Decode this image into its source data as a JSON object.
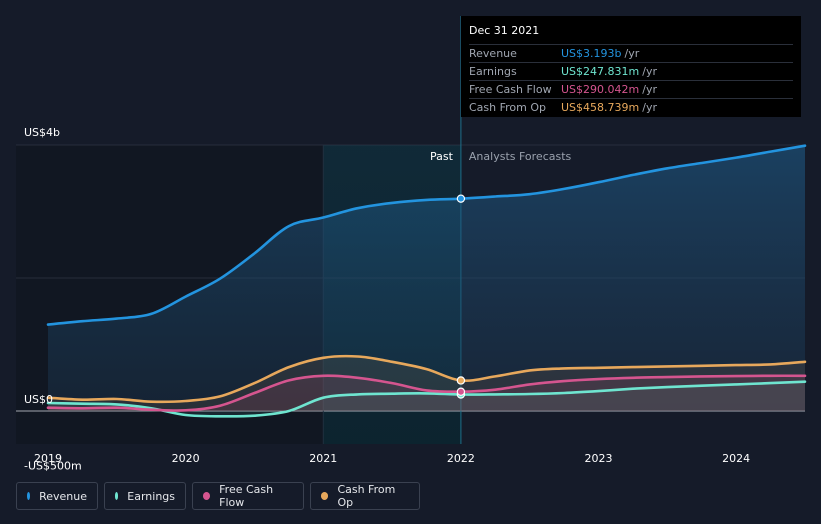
{
  "chart_data": {
    "type": "area",
    "y_unit_labels": [
      "US$4b",
      "US$0",
      "-US$500m"
    ],
    "y_ticks": [
      {
        "label": "US$4b",
        "value": 4000
      },
      {
        "label": "US$0",
        "value": 0
      },
      {
        "label": "-US$500m",
        "value": -500
      }
    ],
    "ylim": [
      -500,
      4000
    ],
    "xlim": [
      2019.0,
      2024.5
    ],
    "x_ticks": [
      {
        "label": "2019",
        "value": 2019.0
      },
      {
        "label": "2020",
        "value": 2020.0
      },
      {
        "label": "2021",
        "value": 2021.0
      },
      {
        "label": "2022",
        "value": 2022.0
      },
      {
        "label": "2023",
        "value": 2023.0
      },
      {
        "label": "2024",
        "value": 2024.0
      }
    ],
    "past_label": "Past",
    "forecast_label": "Analysts Forecasts",
    "past_region_start": 2021.0,
    "divider_x": 2022.0,
    "series": [
      {
        "name": "Revenue",
        "color": "#2394df",
        "x": [
          2019.0,
          2019.25,
          2019.5,
          2019.75,
          2020.0,
          2020.25,
          2020.5,
          2020.75,
          2021.0,
          2021.25,
          2021.5,
          2021.75,
          2022.0,
          2022.25,
          2022.5,
          2022.75,
          2023.0,
          2023.25,
          2023.5,
          2023.75,
          2024.0,
          2024.25,
          2024.5
        ],
        "values": [
          1300,
          1350,
          1390,
          1460,
          1720,
          1990,
          2370,
          2780,
          2910,
          3050,
          3130,
          3175,
          3193,
          3225,
          3260,
          3340,
          3440,
          3550,
          3650,
          3730,
          3810,
          3900,
          3990
        ]
      },
      {
        "name": "Earnings",
        "color": "#6fe5d0",
        "x": [
          2019.0,
          2019.25,
          2019.5,
          2019.75,
          2020.0,
          2020.25,
          2020.5,
          2020.75,
          2021.0,
          2021.25,
          2021.5,
          2021.75,
          2022.0,
          2022.25,
          2022.5,
          2022.75,
          2023.0,
          2023.25,
          2023.5,
          2023.75,
          2024.0,
          2024.25,
          2024.5
        ],
        "values": [
          120,
          110,
          100,
          40,
          -60,
          -80,
          -70,
          0,
          200,
          250,
          260,
          265,
          248,
          250,
          255,
          270,
          300,
          335,
          360,
          380,
          400,
          420,
          440
        ]
      },
      {
        "name": "Free Cash Flow",
        "color": "#d5558f",
        "x": [
          2019.0,
          2019.25,
          2019.5,
          2019.75,
          2020.0,
          2020.25,
          2020.5,
          2020.75,
          2021.0,
          2021.25,
          2021.5,
          2021.75,
          2022.0,
          2022.25,
          2022.5,
          2022.75,
          2023.0,
          2023.25,
          2023.5,
          2023.75,
          2024.0,
          2024.25,
          2024.5
        ],
        "values": [
          50,
          40,
          50,
          20,
          10,
          80,
          270,
          460,
          530,
          500,
          420,
          310,
          290,
          320,
          400,
          450,
          480,
          500,
          510,
          520,
          525,
          530,
          530
        ]
      },
      {
        "name": "Cash From Op",
        "color": "#e7a85c",
        "x": [
          2019.0,
          2019.25,
          2019.5,
          2019.75,
          2020.0,
          2020.25,
          2020.5,
          2020.75,
          2021.0,
          2021.25,
          2021.5,
          2021.75,
          2022.0,
          2022.25,
          2022.5,
          2022.75,
          2023.0,
          2023.25,
          2023.5,
          2023.75,
          2024.0,
          2024.25,
          2024.5
        ],
        "values": [
          200,
          170,
          180,
          140,
          150,
          220,
          420,
          660,
          800,
          820,
          740,
          630,
          459,
          520,
          610,
          640,
          650,
          660,
          670,
          680,
          690,
          700,
          740
        ]
      }
    ],
    "tooltip": {
      "date": "Dec 31 2021",
      "unit": "/yr",
      "rows": [
        {
          "label": "Revenue",
          "value": "US$3.193b",
          "color": "#2394df"
        },
        {
          "label": "Earnings",
          "value": "US$247.831m",
          "color": "#6fe5d0"
        },
        {
          "label": "Free Cash Flow",
          "value": "US$290.042m",
          "color": "#d5558f"
        },
        {
          "label": "Cash From Op",
          "value": "US$458.739m",
          "color": "#e7a85c"
        }
      ]
    },
    "legend": [
      {
        "label": "Revenue",
        "color": "#2394df"
      },
      {
        "label": "Earnings",
        "color": "#6fe5d0"
      },
      {
        "label": "Free Cash Flow",
        "color": "#d5558f"
      },
      {
        "label": "Cash From Op",
        "color": "#e7a85c"
      }
    ]
  }
}
